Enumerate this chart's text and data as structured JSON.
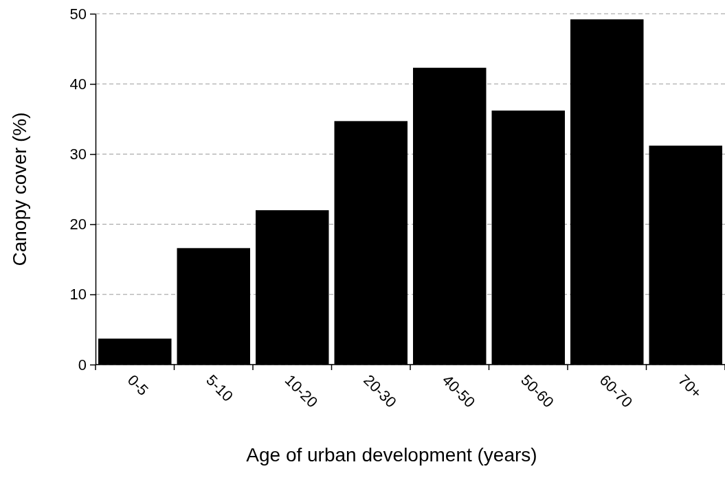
{
  "chart_data": {
    "type": "bar",
    "xlabel": "Age of urban development (years)",
    "ylabel": "Canopy cover (%)",
    "categories": [
      "0-5",
      "5-10",
      "10-20",
      "20-30",
      "40-50",
      "50-60",
      "60-70",
      "70+"
    ],
    "values": [
      3.7,
      16.6,
      22.0,
      34.7,
      42.3,
      36.2,
      49.2,
      31.2
    ],
    "color": "#000000",
    "ylim": [
      0,
      50
    ],
    "yticks": [
      0,
      10,
      20,
      30,
      40,
      50
    ],
    "grid": "y"
  }
}
